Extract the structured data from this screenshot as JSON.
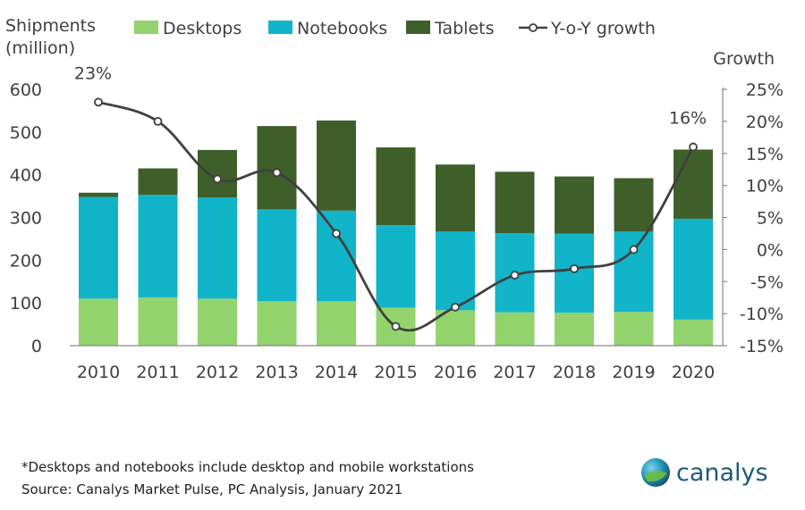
{
  "chart_data": {
    "type": "bar",
    "stacked": true,
    "categories": [
      "2010",
      "2011",
      "2012",
      "2013",
      "2014",
      "2015",
      "2016",
      "2017",
      "2018",
      "2019",
      "2020"
    ],
    "series": [
      {
        "name": "Desktops",
        "values": [
          110,
          113,
          110,
          104,
          104,
          89,
          83,
          78,
          77,
          79,
          61
        ],
        "color": "#92d36e"
      },
      {
        "name": "Notebooks",
        "values": [
          238,
          240,
          237,
          215,
          212,
          193,
          184,
          185,
          185,
          188,
          236
        ],
        "color": "#11b4c9"
      },
      {
        "name": "Tablets",
        "values": [
          10,
          62,
          111,
          195,
          211,
          182,
          157,
          144,
          134,
          125,
          162
        ],
        "color": "#3f5f2a"
      }
    ],
    "line": {
      "name": "Y-o-Y growth",
      "values": [
        23,
        20,
        11,
        12,
        2.5,
        -12,
        -9,
        -4,
        -3,
        0,
        16
      ],
      "color": "#404040"
    },
    "ylabel": "Shipments\n(million)",
    "ylim": [
      0,
      600
    ],
    "yticks": [
      "0",
      "100",
      "200",
      "300",
      "400",
      "500",
      "600"
    ],
    "y2label": "Growth",
    "y2lim": [
      -15,
      25
    ],
    "y2ticks": [
      "-15%",
      "-10%",
      "-5%",
      "0%",
      "5%",
      "10%",
      "15%",
      "20%",
      "25%"
    ],
    "annotations": [
      {
        "text": "23%",
        "category": "2010"
      },
      {
        "text": "16%",
        "category": "2020"
      }
    ],
    "legend_position": "top",
    "grid": false
  },
  "ylabel_lines": [
    "Shipments",
    "(million)"
  ],
  "footnote": "*Desktops and notebooks include desktop and mobile workstations",
  "source": "Source: Canalys Market Pulse, PC Analysis, January 2021",
  "logo_text": "canalys"
}
